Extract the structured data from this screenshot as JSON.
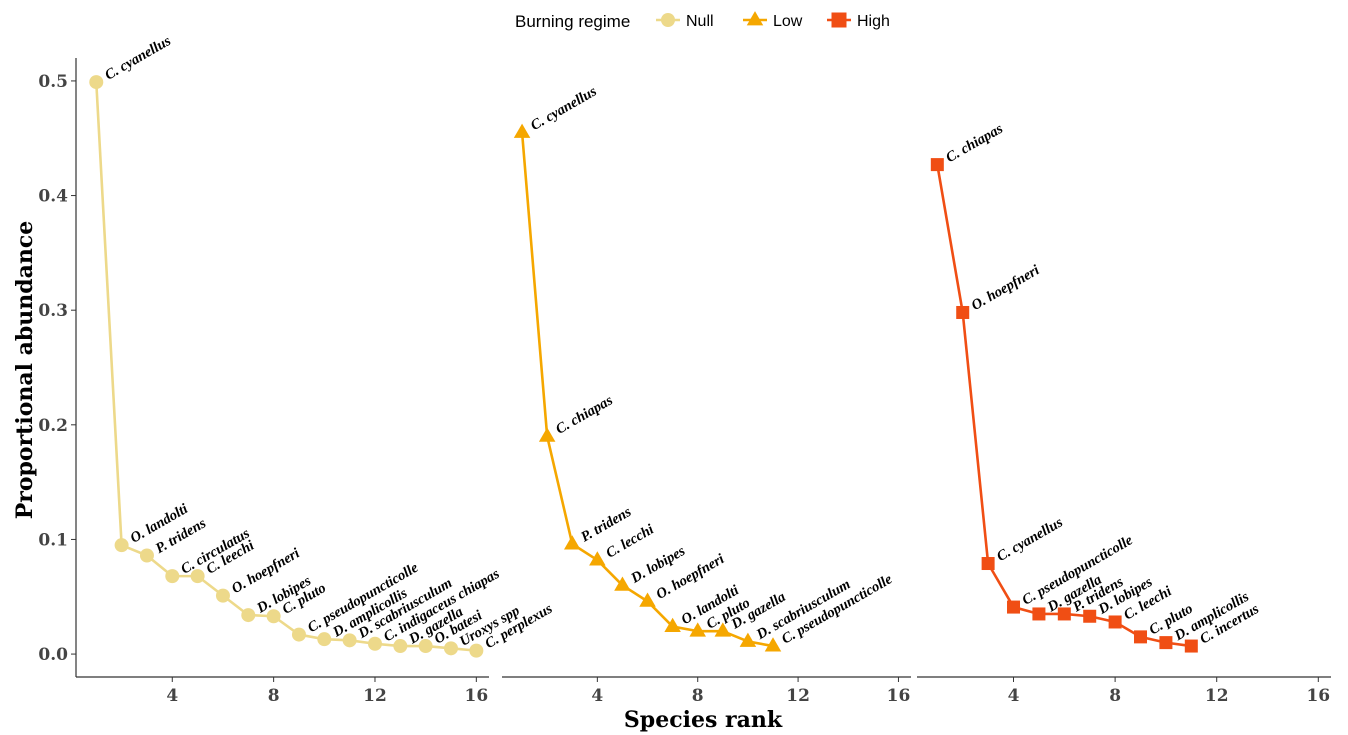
{
  "chart_data": {
    "type": "line",
    "xlabel": "Species rank",
    "ylabel": "Proportional abundance",
    "xlim": [
      0.2,
      16.5
    ],
    "ylim": [
      -0.02,
      0.52
    ],
    "xticks": [
      4,
      8,
      12,
      16
    ],
    "yticks": [
      0.0,
      0.1,
      0.2,
      0.3,
      0.4,
      0.5
    ],
    "xtick_labels": [
      "4",
      "8",
      "12",
      "16"
    ],
    "ytick_labels": [
      "0.0",
      "0.1",
      "0.2",
      "0.3",
      "0.4",
      "0.5"
    ],
    "grid": false,
    "legend": {
      "title": "Burning regime",
      "placement": "top",
      "entries": [
        "Null",
        "Low",
        "High"
      ]
    },
    "panels": [
      {
        "name": "Null",
        "color": "#EDD98A",
        "marker": "circle",
        "x": [
          1,
          2,
          3,
          4,
          5,
          6,
          7,
          8,
          9,
          10,
          11,
          12,
          13,
          14,
          15,
          16
        ],
        "y": [
          0.499,
          0.095,
          0.086,
          0.068,
          0.068,
          0.051,
          0.034,
          0.033,
          0.017,
          0.013,
          0.012,
          0.009,
          0.007,
          0.007,
          0.005,
          0.003
        ],
        "labels": [
          "C. cyanellus",
          "O. landolti",
          "P. tridens",
          "C. circulatus",
          "C. leechi",
          "O. hoepfneri",
          "D. lobipes",
          "C. pluto",
          "C. pseudopuncticolle",
          "D. amplicollis",
          "D. scabriusculum",
          "C. indigaceus chiapas",
          "D. gazella",
          "O. batesi",
          "Uroxys spp",
          "C. perplexus"
        ]
      },
      {
        "name": "Low",
        "color": "#F5A700",
        "marker": "triangle",
        "x": [
          1,
          2,
          3,
          4,
          5,
          6,
          7,
          8,
          9,
          10,
          11
        ],
        "y": [
          0.455,
          0.19,
          0.096,
          0.082,
          0.06,
          0.046,
          0.024,
          0.02,
          0.02,
          0.011,
          0.007
        ],
        "labels": [
          "C. cyanellus",
          "C. chiapas",
          "P. tridens",
          "C. lecchi",
          "D. lobipes",
          "O. hoepfneri",
          "O. landolti",
          "C. pluto",
          "D. gazella",
          "D. scabriusculum",
          "C. pseudopuncticolle"
        ]
      },
      {
        "name": "High",
        "color": "#F04E14",
        "marker": "square",
        "x": [
          1,
          2,
          3,
          4,
          5,
          6,
          7,
          8,
          9,
          10,
          11
        ],
        "y": [
          0.427,
          0.298,
          0.079,
          0.041,
          0.035,
          0.035,
          0.033,
          0.028,
          0.015,
          0.01,
          0.007
        ],
        "labels": [
          "C. chiapas",
          "O. hoepfneri",
          "C. cyanellus",
          "C. pseudopuncticolle",
          "D. gazella",
          "P. tridens",
          "D. lobipes",
          "C. leechi",
          "C. pluto",
          "D. amplicollis",
          "C. incertus"
        ]
      }
    ]
  }
}
